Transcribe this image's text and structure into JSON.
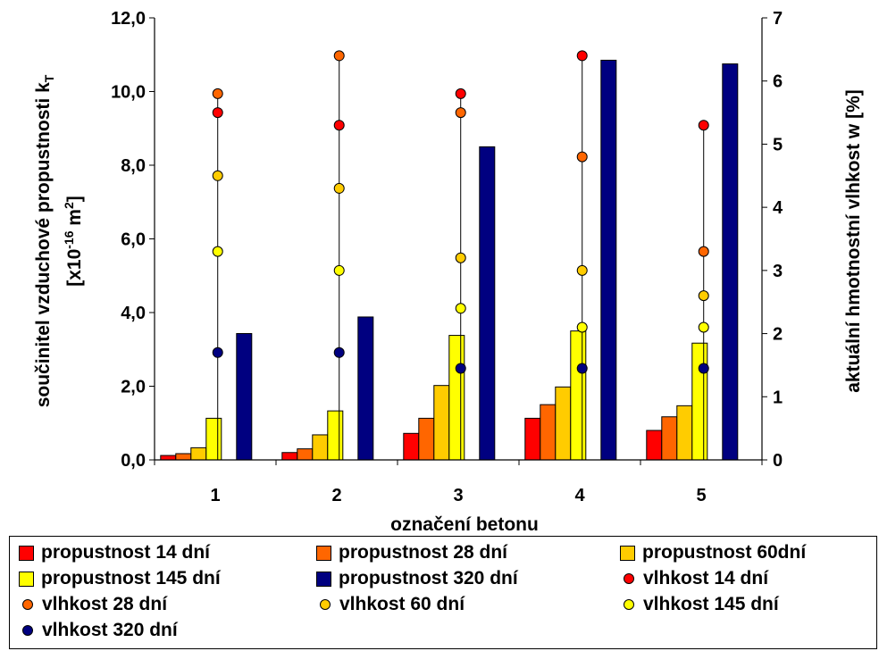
{
  "chart_data": {
    "type": "bar",
    "categories": [
      "1",
      "2",
      "3",
      "4",
      "5"
    ],
    "xlabel": "označení betonu",
    "ylabel_line1": "součinitel vzduchové propustnosti k",
    "ylabel_line1_sub": "T",
    "ylabel_line2_pre": "[x10",
    "ylabel_line2_exp1": "-16",
    "ylabel_line2_mid": " m",
    "ylabel_line2_exp2": "2",
    "ylabel_line2_post": "]",
    "ylabel_right": "aktuální hmotnostní vlhkost w [%]",
    "ylim": [
      0,
      12
    ],
    "yticks": [
      "0,0",
      "2,0",
      "4,0",
      "6,0",
      "8,0",
      "10,0",
      "12,0"
    ],
    "y2lim": [
      0,
      7
    ],
    "y2ticks": [
      "0",
      "1",
      "2",
      "3",
      "4",
      "5",
      "6",
      "7"
    ],
    "bar_series": [
      {
        "name": "propustnost 14 dní",
        "color": "#ff0000",
        "values": [
          0.12,
          0.2,
          0.72,
          1.13,
          0.8
        ]
      },
      {
        "name": "propustnost 28 dní",
        "color": "#ff6600",
        "values": [
          0.17,
          0.3,
          1.13,
          1.5,
          1.17
        ]
      },
      {
        "name": "propustnost 60dní",
        "color": "#ffcc00",
        "values": [
          0.33,
          0.68,
          2.02,
          1.98,
          1.47
        ]
      },
      {
        "name": "propustnost 145 dní",
        "color": "#ffff00",
        "values": [
          1.13,
          1.33,
          3.38,
          3.5,
          3.17
        ]
      },
      {
        "name": "propustnost 320 dní",
        "color": "#000080",
        "values": [
          3.43,
          3.88,
          8.5,
          10.85,
          10.75
        ]
      }
    ],
    "point_series": [
      {
        "name": "vlhkost 14 dní",
        "color": "#ff0000",
        "values": [
          5.5,
          5.3,
          5.8,
          6.4,
          5.3
        ]
      },
      {
        "name": "vlhkost 28 dní",
        "color": "#ff6600",
        "values": [
          5.8,
          6.4,
          5.5,
          4.8,
          3.3
        ]
      },
      {
        "name": "vlhkost 60 dní",
        "color": "#ffcc00",
        "values": [
          4.5,
          4.3,
          3.2,
          3.0,
          2.6
        ]
      },
      {
        "name": "vlhkost 145 dní",
        "color": "#ffff00",
        "values": [
          3.3,
          3.0,
          2.4,
          2.1,
          2.1
        ]
      },
      {
        "name": "vlhkost 320 dní",
        "color": "#000080",
        "values": [
          1.7,
          1.7,
          1.45,
          1.45,
          1.45
        ]
      }
    ]
  },
  "legend": {
    "items": [
      {
        "label": "propustnost 14 dní",
        "kind": "bar",
        "color": "#ff0000"
      },
      {
        "label": "propustnost 28 dní",
        "kind": "bar",
        "color": "#ff6600"
      },
      {
        "label": "propustnost 60dní",
        "kind": "bar",
        "color": "#ffcc00"
      },
      {
        "label": "propustnost 145 dní",
        "kind": "bar",
        "color": "#ffff00"
      },
      {
        "label": "propustnost 320 dní",
        "kind": "bar",
        "color": "#000080"
      },
      {
        "label": "vlhkost 14 dní",
        "kind": "dot",
        "color": "#ff0000"
      },
      {
        "label": "vlhkost 28 dní",
        "kind": "dot",
        "color": "#ff6600"
      },
      {
        "label": "vlhkost 60 dní",
        "kind": "dot",
        "color": "#ffcc00"
      },
      {
        "label": "vlhkost 145 dní",
        "kind": "dot",
        "color": "#ffff00"
      },
      {
        "label": "vlhkost 320 dní",
        "kind": "dot",
        "color": "#000080"
      }
    ]
  }
}
